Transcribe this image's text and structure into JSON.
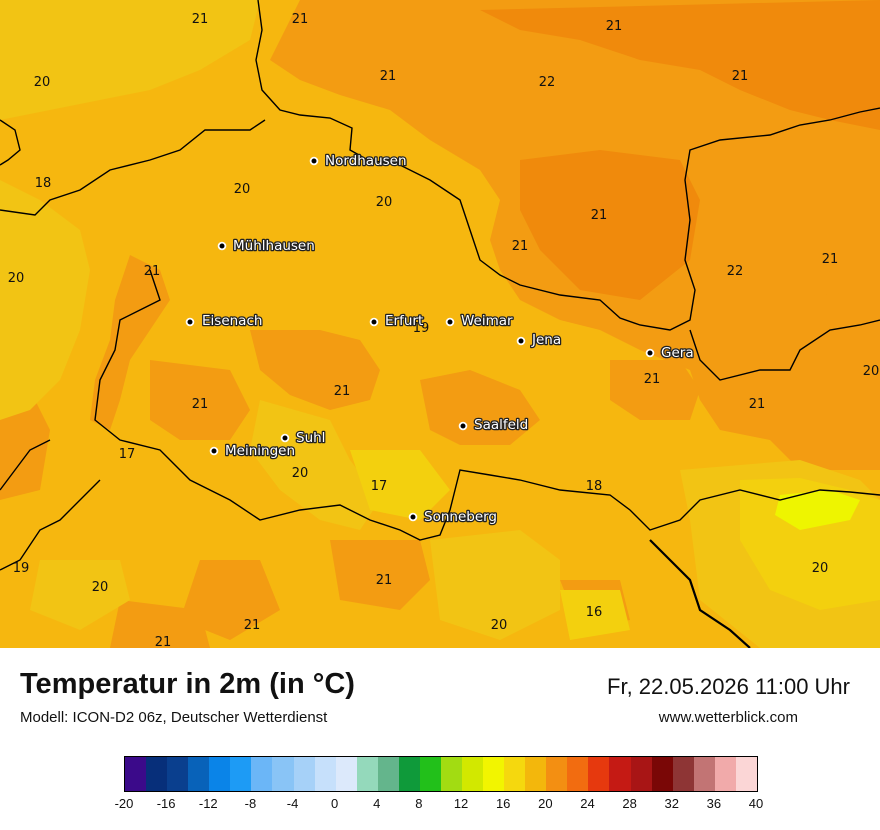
{
  "map": {
    "palette": {
      "orange_dark": "#f08a0c",
      "orange": "#f39c12",
      "amber": "#f6b70f",
      "yellow_warm": "#f2c414",
      "yellow": "#f3d00e",
      "yellow_bright": "#eef500",
      "border_color": "#000000"
    },
    "value_labels": [
      "21",
      "21",
      "21",
      "20",
      "21",
      "22",
      "21",
      "18",
      "20",
      "20",
      "21",
      "21",
      "20",
      "21",
      "22",
      "21",
      "19",
      "20",
      "21",
      "21",
      "21",
      "21",
      "17",
      "20",
      "17",
      "18",
      "19",
      "20",
      "21",
      "21",
      "16",
      "20",
      "20",
      "21"
    ],
    "cities": [
      {
        "name": "Nordhausen"
      },
      {
        "name": "Mühlhausen"
      },
      {
        "name": "Eisenach"
      },
      {
        "name": "Erfurt"
      },
      {
        "name": "Weimar"
      },
      {
        "name": "Jena"
      },
      {
        "name": "Gera"
      },
      {
        "name": "Suhl"
      },
      {
        "name": "Meiningen"
      },
      {
        "name": "Saalfeld"
      },
      {
        "name": "Sonneberg"
      }
    ]
  },
  "footer": {
    "title": "Temperatur in 2m (in °C)",
    "model": "Modell: ICON-D2 06z, Deutscher Wetterdienst",
    "datetime": "Fr, 22.05.2026 11:00 Uhr",
    "website": "www.wetterblick.com"
  },
  "legend": {
    "colors": [
      "#3b0a8a",
      "#072f7a",
      "#0a3f8e",
      "#0862b9",
      "#0a84e8",
      "#1d9bf5",
      "#6bb6f7",
      "#89c4f6",
      "#a6d1f8",
      "#c6e0fb",
      "#dce9fb",
      "#94d9bb",
      "#64b58c",
      "#0f9a3a",
      "#22c01a",
      "#a2dc12",
      "#d2e800",
      "#f2f500",
      "#f5d80e",
      "#f3b70c",
      "#f38f12",
      "#f26c10",
      "#e6390e",
      "#c51a14",
      "#a81515",
      "#7a0706",
      "#8e3535",
      "#c27474",
      "#f1aaaa",
      "#fbd6d6"
    ],
    "ticks": [
      "-20",
      "-16",
      "-12",
      "-8",
      "-4",
      "0",
      "4",
      "8",
      "12",
      "16",
      "20",
      "24",
      "28",
      "32",
      "36",
      "40"
    ]
  }
}
